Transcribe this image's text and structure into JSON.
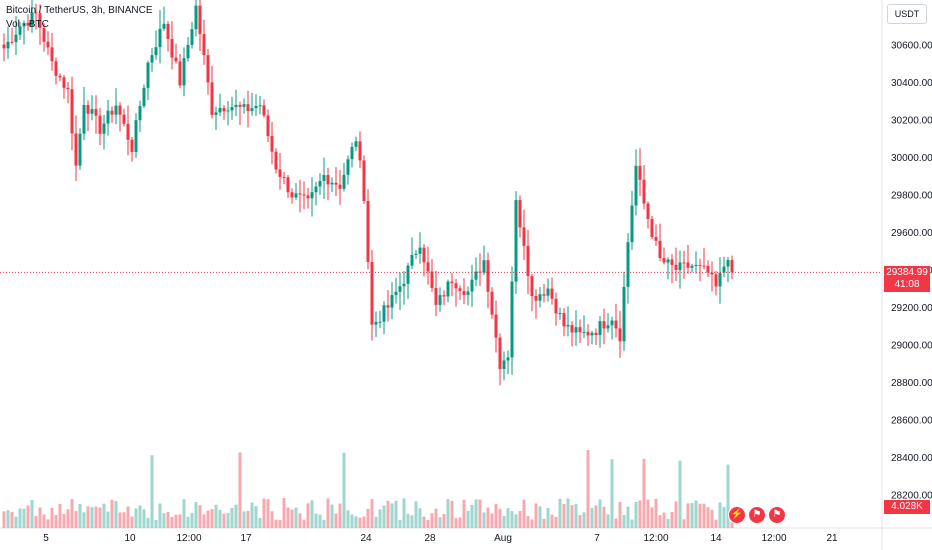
{
  "legend": {
    "symbol_line": "Bitcoin / TetherUS, 3h, BINANCE",
    "volume_line": "Vol · BTC"
  },
  "price_axis": {
    "unit": "USDT",
    "ticks": [
      30600,
      30400,
      30200,
      30000,
      29800,
      29600,
      29400,
      29200,
      29000,
      28800,
      28600,
      28400,
      28200
    ],
    "tick_labels": [
      "30600.00",
      "30400.00",
      "30200.00",
      "30000.00",
      "29800.00",
      "29600.00",
      "29400.00",
      "29200.00",
      "29000.00",
      "28800.00",
      "28600.00",
      "28400.00",
      "28200.00"
    ]
  },
  "last_price": {
    "label": "29384.99",
    "countdown": "41:08",
    "color": "#f23645"
  },
  "volume_last": {
    "label": "4.028K"
  },
  "time_axis": {
    "labels": [
      "5",
      "10",
      "12:00",
      "17",
      "24",
      "28",
      "Aug",
      "7",
      "12:00",
      "14",
      "12:00",
      "21"
    ]
  },
  "event_icons": [
    "lightning-icon",
    "flag-icon",
    "flag-icon"
  ],
  "colors": {
    "up": "#089981",
    "down": "#f23645",
    "up_vol": "#9fd6cd",
    "down_vol": "#f7a9b0",
    "grid": "#f0f3fa"
  },
  "chart_data": {
    "type": "candlestick",
    "title": "Bitcoin / TetherUS, 3h, BINANCE",
    "ylim": [
      28100,
      30800
    ],
    "anchors": [
      {
        "i": 0,
        "p": 30580
      },
      {
        "i": 4,
        "p": 30700
      },
      {
        "i": 8,
        "p": 30760
      },
      {
        "i": 12,
        "p": 30500
      },
      {
        "i": 16,
        "p": 30350
      },
      {
        "i": 18,
        "p": 29950
      },
      {
        "i": 20,
        "p": 30300
      },
      {
        "i": 24,
        "p": 30150
      },
      {
        "i": 28,
        "p": 30280
      },
      {
        "i": 32,
        "p": 30050
      },
      {
        "i": 36,
        "p": 30500
      },
      {
        "i": 40,
        "p": 30720
      },
      {
        "i": 44,
        "p": 30400
      },
      {
        "i": 48,
        "p": 30800
      },
      {
        "i": 52,
        "p": 30250
      },
      {
        "i": 56,
        "p": 30280
      },
      {
        "i": 60,
        "p": 30250
      },
      {
        "i": 64,
        "p": 30280
      },
      {
        "i": 68,
        "p": 29950
      },
      {
        "i": 72,
        "p": 29800
      },
      {
        "i": 76,
        "p": 29750
      },
      {
        "i": 80,
        "p": 29900
      },
      {
        "i": 84,
        "p": 29850
      },
      {
        "i": 88,
        "p": 30100
      },
      {
        "i": 90,
        "p": 29800
      },
      {
        "i": 92,
        "p": 29100
      },
      {
        "i": 96,
        "p": 29200
      },
      {
        "i": 100,
        "p": 29350
      },
      {
        "i": 104,
        "p": 29550
      },
      {
        "i": 108,
        "p": 29200
      },
      {
        "i": 112,
        "p": 29350
      },
      {
        "i": 116,
        "p": 29280
      },
      {
        "i": 120,
        "p": 29450
      },
      {
        "i": 124,
        "p": 28900
      },
      {
        "i": 126,
        "p": 28950
      },
      {
        "i": 128,
        "p": 29750
      },
      {
        "i": 130,
        "p": 29550
      },
      {
        "i": 132,
        "p": 29250
      },
      {
        "i": 136,
        "p": 29300
      },
      {
        "i": 140,
        "p": 29100
      },
      {
        "i": 144,
        "p": 29050
      },
      {
        "i": 148,
        "p": 29080
      },
      {
        "i": 152,
        "p": 29150
      },
      {
        "i": 154,
        "p": 29050
      },
      {
        "i": 156,
        "p": 29550
      },
      {
        "i": 158,
        "p": 29950
      },
      {
        "i": 160,
        "p": 29750
      },
      {
        "i": 164,
        "p": 29450
      },
      {
        "i": 168,
        "p": 29400
      },
      {
        "i": 172,
        "p": 29420
      },
      {
        "i": 176,
        "p": 29380
      },
      {
        "i": 178,
        "p": 29300
      },
      {
        "i": 181,
        "p": 29480
      },
      {
        "i": 182,
        "p": 29385
      }
    ]
  }
}
